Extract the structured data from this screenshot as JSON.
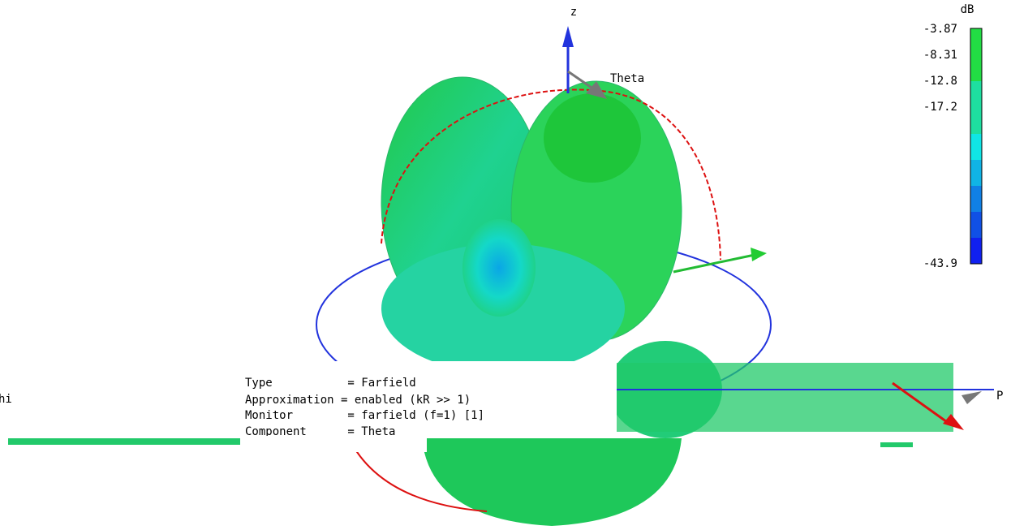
{
  "axes": {
    "z": "z",
    "theta": "Theta",
    "phi_left": "hi",
    "phi_right": "P"
  },
  "colorbar": {
    "unit": "dB",
    "ticks": [
      "-3.87",
      "-8.31",
      "-12.8",
      "-17.2",
      "-43.9"
    ]
  },
  "info": {
    "lines": [
      "Type           = Farfield",
      "Approximation = enabled (kR >> 1)",
      "Monitor        = farfield (f=1) [1]",
      "Component      = Theta"
    ]
  }
}
